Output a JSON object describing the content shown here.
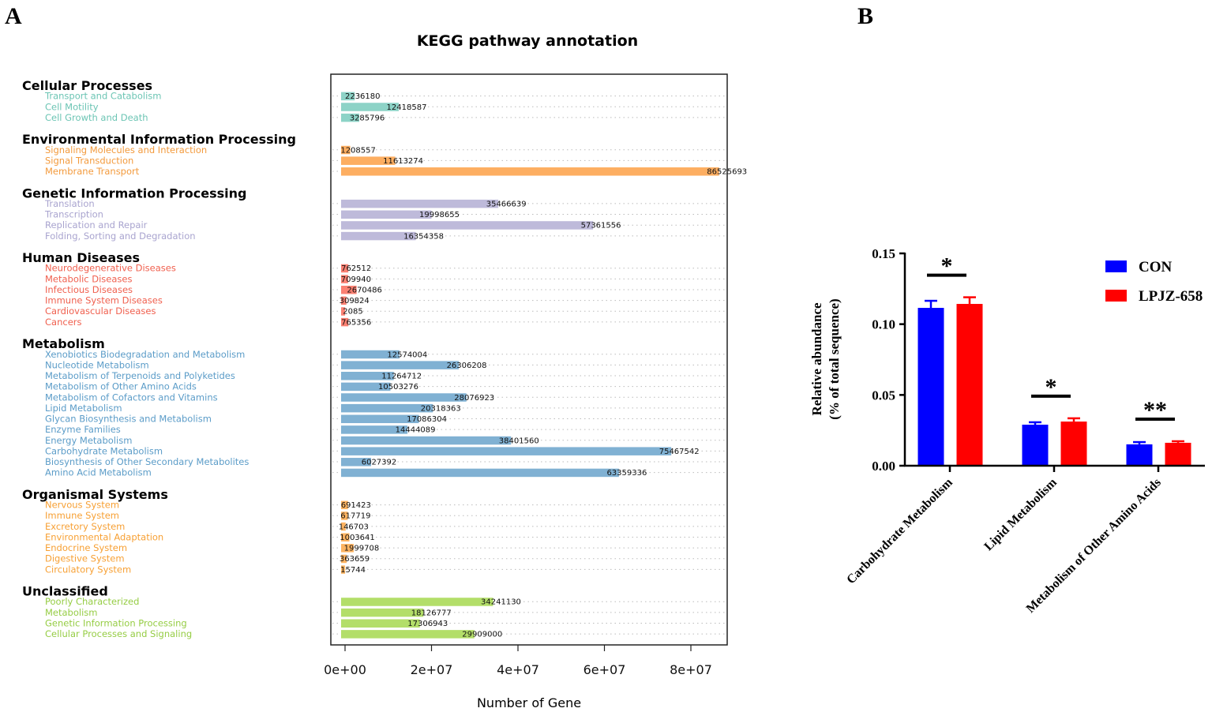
{
  "panel_labels": {
    "a": "A",
    "b": "B"
  },
  "chart_data": [
    {
      "type": "bar",
      "orientation": "horizontal",
      "title": "KEGG pathway annotation",
      "xlabel": "Number of Gene",
      "ylabel": "",
      "xlim": [
        0,
        90000000
      ],
      "xticks": [
        0,
        20000000,
        40000000,
        60000000,
        80000000
      ],
      "xtick_labels": [
        "0e+00",
        "2e+07",
        "4e+07",
        "6e+07",
        "8e+07"
      ],
      "grid": "dotted horizontal",
      "groups": [
        {
          "name": "Cellular Processes",
          "color": "#8dd3c7",
          "text_color": "#6cc5b4",
          "items": [
            {
              "label": "Transport and Catabolism",
              "value": 2236180
            },
            {
              "label": "Cell Motility",
              "value": 12418587
            },
            {
              "label": "Cell Growth and Death",
              "value": 3285796
            }
          ]
        },
        {
          "name": "Environmental Information Processing",
          "color": "#fdae61",
          "text_color": "#f39a3c",
          "items": [
            {
              "label": "Signaling Molecules and Interaction",
              "value": 1208557
            },
            {
              "label": "Signal Transduction",
              "value": 11613274
            },
            {
              "label": "Membrane Transport",
              "value": 86525693
            }
          ]
        },
        {
          "name": "Genetic Information Processing",
          "color": "#bebada",
          "text_color": "#a9a4cf",
          "items": [
            {
              "label": "Translation",
              "value": 35466639
            },
            {
              "label": "Transcription",
              "value": 19998655
            },
            {
              "label": "Replication and Repair",
              "value": 57361556
            },
            {
              "label": "Folding, Sorting and Degradation",
              "value": 16354358
            }
          ]
        },
        {
          "name": "Human Diseases",
          "color": "#fb8072",
          "text_color": "#f0604f",
          "items": [
            {
              "label": "Neurodegenerative Diseases",
              "value": 762512
            },
            {
              "label": "Metabolic Diseases",
              "value": 709940
            },
            {
              "label": "Infectious Diseases",
              "value": 2670486
            },
            {
              "label": "Immune System Diseases",
              "value": 309824
            },
            {
              "label": "Cardiovascular Diseases",
              "value": 2085
            },
            {
              "label": "Cancers",
              "value": 765356
            }
          ]
        },
        {
          "name": "Metabolism",
          "color": "#80b1d3",
          "text_color": "#5b9cc8",
          "items": [
            {
              "label": "Xenobiotics Biodegradation and Metabolism",
              "value": 12574004
            },
            {
              "label": "Nucleotide Metabolism",
              "value": 26306208
            },
            {
              "label": "Metabolism of Terpenoids and Polyketides",
              "value": 11264712
            },
            {
              "label": "Metabolism of Other Amino Acids",
              "value": 10503276
            },
            {
              "label": "Metabolism of Cofactors and Vitamins",
              "value": 28076923
            },
            {
              "label": "Lipid Metabolism",
              "value": 20318363
            },
            {
              "label": "Glycan Biosynthesis and Metabolism",
              "value": 17086304
            },
            {
              "label": "Enzyme Families",
              "value": 14444089
            },
            {
              "label": "Energy Metabolism",
              "value": 38401560
            },
            {
              "label": "Carbohydrate Metabolism",
              "value": 75467542
            },
            {
              "label": "Biosynthesis of Other Secondary Metabolites",
              "value": 6027392
            },
            {
              "label": "Amino Acid Metabolism",
              "value": 63359336
            }
          ]
        },
        {
          "name": "Organismal Systems",
          "color": "#fdb462",
          "text_color": "#f7a034",
          "items": [
            {
              "label": "Nervous System",
              "value": 691423
            },
            {
              "label": "Immune System",
              "value": 617719
            },
            {
              "label": "Excretory System",
              "value": 146703
            },
            {
              "label": "Environmental Adaptation",
              "value": 1003641
            },
            {
              "label": "Endocrine System",
              "value": 1999708
            },
            {
              "label": "Digestive System",
              "value": 363659
            },
            {
              "label": "Circulatory System",
              "value": 15744
            }
          ]
        },
        {
          "name": "Unclassified",
          "color": "#b3de69",
          "text_color": "#96cd45",
          "items": [
            {
              "label": "Poorly Characterized",
              "value": 34241130
            },
            {
              "label": "Metabolism",
              "value": 18126777
            },
            {
              "label": "Genetic Information Processing",
              "value": 17306943
            },
            {
              "label": "Cellular Processes and Signaling",
              "value": 29909000
            }
          ]
        }
      ]
    },
    {
      "type": "bar",
      "orientation": "vertical",
      "title": "",
      "xlabel": "",
      "ylabel": [
        "Relative abundance",
        "(% of total sequence)"
      ],
      "ylim": [
        0,
        0.15
      ],
      "yticks": [
        0,
        0.05,
        0.1,
        0.15
      ],
      "ytick_labels": [
        "0.00",
        "0.05",
        "0.10",
        "0.15"
      ],
      "categories": [
        "Carbohydrate Metabolism",
        "Lipid Metabolism",
        "Metabolism of Other Amino Acids"
      ],
      "series": [
        {
          "name": "CON",
          "color": "#0000ff",
          "values": [
            0.1115,
            0.029,
            0.0151
          ],
          "errors": [
            0.005,
            0.0017,
            0.0016
          ]
        },
        {
          "name": "LPJZ-658",
          "color": "#ff0000",
          "values": [
            0.1143,
            0.0312,
            0.0162
          ],
          "errors": [
            0.0047,
            0.0023,
            0.0011
          ]
        }
      ],
      "significance": [
        "*",
        "*",
        "**"
      ],
      "legend": "top-right"
    }
  ]
}
